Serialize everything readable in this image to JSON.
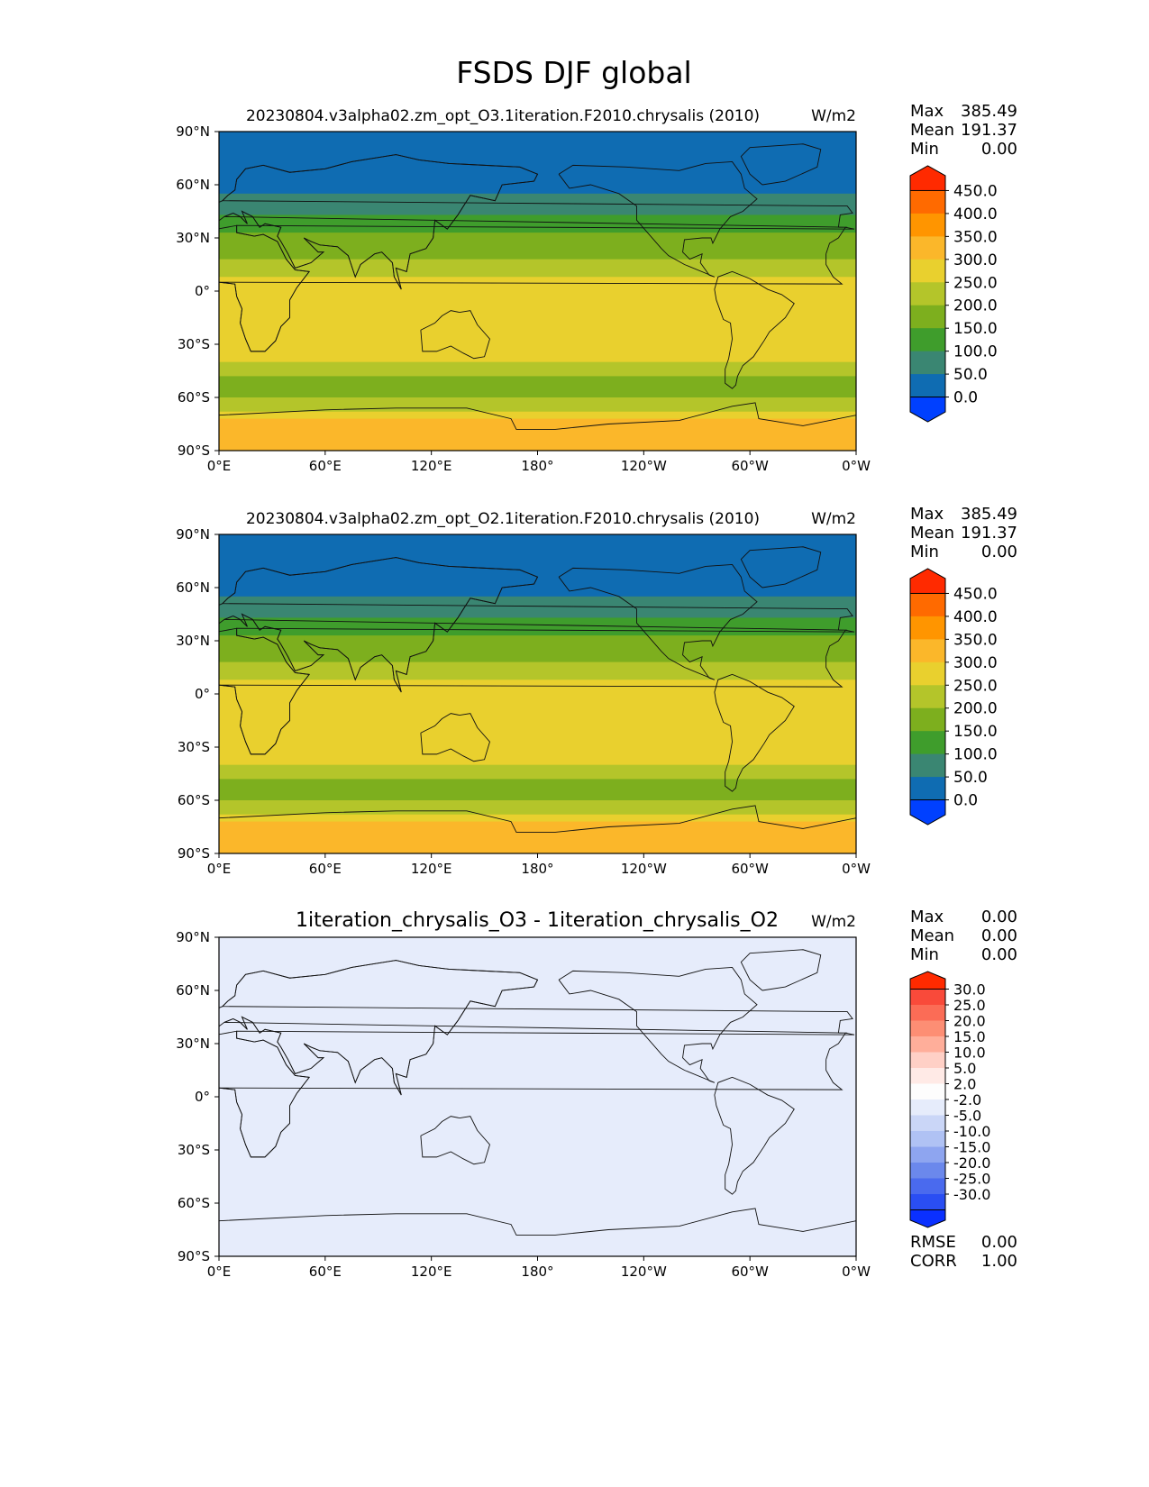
{
  "figure_title": "FSDS DJF global",
  "chart_data": [
    {
      "type": "heatmap",
      "title": "20230804.v3alpha02.zm_opt_O3.1iteration.F2010.chrysalis (2010)",
      "units": "W/m2",
      "x_ticks": [
        "0°E",
        "60°E",
        "120°E",
        "180°",
        "120°W",
        "60°W",
        "0°W"
      ],
      "y_ticks": [
        "90°N",
        "60°N",
        "30°N",
        "0°",
        "30°S",
        "60°S",
        "90°S"
      ],
      "stats": [
        {
          "label": "Max",
          "value": "385.49"
        },
        {
          "label": "Mean",
          "value": "191.37"
        },
        {
          "label": "Min",
          "value": "0.00"
        }
      ],
      "colorbar_levels": [
        "450.0",
        "400.0",
        "350.0",
        "300.0",
        "250.0",
        "200.0",
        "150.0",
        "100.0",
        "50.0",
        "0.0"
      ],
      "colorbar_colors": [
        "#ff2a00",
        "#ff6a00",
        "#ff9500",
        "#fbb72a",
        "#e9d02e",
        "#b4c52a",
        "#7daf1e",
        "#3f9d2c",
        "#3a8672",
        "#0f6cb2",
        "#0040ff"
      ],
      "zonal_value_bands": [
        {
          "lat_from": 90,
          "lat_to": 85,
          "value": 0
        },
        {
          "lat_from": 85,
          "lat_to": 55,
          "value": 25
        },
        {
          "lat_from": 55,
          "lat_to": 43,
          "value": 75
        },
        {
          "lat_from": 43,
          "lat_to": 33,
          "value": 125
        },
        {
          "lat_from": 33,
          "lat_to": 18,
          "value": 175
        },
        {
          "lat_from": 18,
          "lat_to": 8,
          "value": 225
        },
        {
          "lat_from": 8,
          "lat_to": -40,
          "value": 275
        },
        {
          "lat_from": -40,
          "lat_to": -48,
          "value": 225
        },
        {
          "lat_from": -48,
          "lat_to": -60,
          "value": 175
        },
        {
          "lat_from": -60,
          "lat_to": -68,
          "value": 225
        },
        {
          "lat_from": -68,
          "lat_to": -72,
          "value": 275
        },
        {
          "lat_from": -72,
          "lat_to": -90,
          "value": 325
        }
      ]
    },
    {
      "type": "heatmap",
      "title": "20230804.v3alpha02.zm_opt_O2.1iteration.F2010.chrysalis (2010)",
      "units": "W/m2",
      "x_ticks": [
        "0°E",
        "60°E",
        "120°E",
        "180°",
        "120°W",
        "60°W",
        "0°W"
      ],
      "y_ticks": [
        "90°N",
        "60°N",
        "30°N",
        "0°",
        "30°S",
        "60°S",
        "90°S"
      ],
      "stats": [
        {
          "label": "Max",
          "value": "385.49"
        },
        {
          "label": "Mean",
          "value": "191.37"
        },
        {
          "label": "Min",
          "value": "0.00"
        }
      ],
      "colorbar_levels": [
        "450.0",
        "400.0",
        "350.0",
        "300.0",
        "250.0",
        "200.0",
        "150.0",
        "100.0",
        "50.0",
        "0.0"
      ],
      "colorbar_colors": [
        "#ff2a00",
        "#ff6a00",
        "#ff9500",
        "#fbb72a",
        "#e9d02e",
        "#b4c52a",
        "#7daf1e",
        "#3f9d2c",
        "#3a8672",
        "#0f6cb2",
        "#0040ff"
      ],
      "zonal_value_bands": [
        {
          "lat_from": 90,
          "lat_to": 85,
          "value": 0
        },
        {
          "lat_from": 85,
          "lat_to": 55,
          "value": 25
        },
        {
          "lat_from": 55,
          "lat_to": 43,
          "value": 75
        },
        {
          "lat_from": 43,
          "lat_to": 33,
          "value": 125
        },
        {
          "lat_from": 33,
          "lat_to": 18,
          "value": 175
        },
        {
          "lat_from": 18,
          "lat_to": 8,
          "value": 225
        },
        {
          "lat_from": 8,
          "lat_to": -40,
          "value": 275
        },
        {
          "lat_from": -40,
          "lat_to": -48,
          "value": 225
        },
        {
          "lat_from": -48,
          "lat_to": -60,
          "value": 175
        },
        {
          "lat_from": -60,
          "lat_to": -68,
          "value": 225
        },
        {
          "lat_from": -68,
          "lat_to": -72,
          "value": 275
        },
        {
          "lat_from": -72,
          "lat_to": -90,
          "value": 325
        }
      ]
    },
    {
      "type": "heatmap",
      "title": "1iteration_chrysalis_O3 - 1iteration_chrysalis_O2",
      "units": "W/m2",
      "x_ticks": [
        "0°E",
        "60°E",
        "120°E",
        "180°",
        "120°W",
        "60°W",
        "0°W"
      ],
      "y_ticks": [
        "90°N",
        "60°N",
        "30°N",
        "0°",
        "30°S",
        "60°S",
        "90°S"
      ],
      "stats": [
        {
          "label": "Max",
          "value": "0.00"
        },
        {
          "label": "Mean",
          "value": "0.00"
        },
        {
          "label": "Min",
          "value": "0.00"
        }
      ],
      "colorbar_levels": [
        "30.0",
        "25.0",
        "20.0",
        "15.0",
        "10.0",
        "5.0",
        "2.0",
        "-2.0",
        "-5.0",
        "-10.0",
        "-15.0",
        "-20.0",
        "-25.0",
        "-30.0"
      ],
      "colorbar_colors": [
        "#ff2a00",
        "#f94a3a",
        "#fb6c56",
        "#fd8e74",
        "#ffae9a",
        "#ffd0c6",
        "#ffeae6",
        "#fdfdfd",
        "#e6ecfb",
        "#cad6f7",
        "#b0c2f4",
        "#8ea5f0",
        "#6b88ec",
        "#4a6aee",
        "#2a4ef3",
        "#0a30ff"
      ],
      "zonal_value_bands": [
        {
          "lat_from": 90,
          "lat_to": -90,
          "value": 0
        }
      ],
      "footer_stats": [
        {
          "label": "RMSE",
          "value": "0.00"
        },
        {
          "label": "CORR",
          "value": "1.00"
        }
      ]
    }
  ]
}
